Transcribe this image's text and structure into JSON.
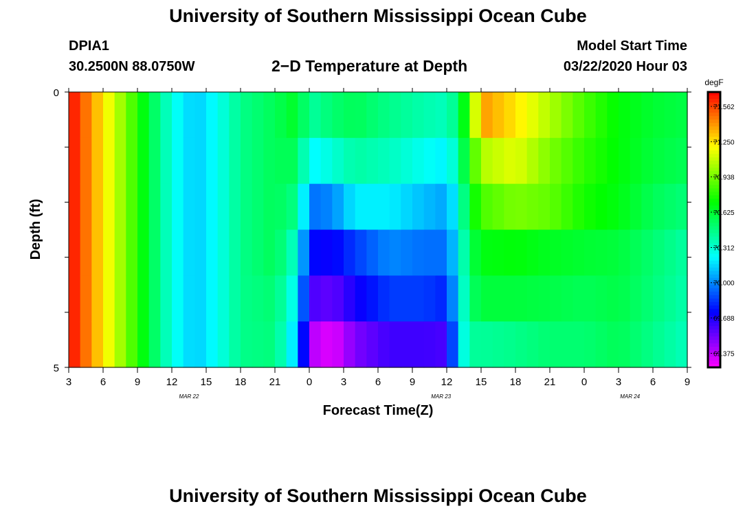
{
  "header": {
    "title": "University of Southern Mississippi Ocean Cube",
    "station": "DPIA1",
    "coordinates": "30.2500N 88.0750W",
    "subtitle": "2−D Temperature at Depth",
    "model_start_label": "Model Start Time",
    "model_start_value": "03/22/2020 Hour 03"
  },
  "footer": {
    "title": "University of Southern Mississippi Ocean Cube"
  },
  "chart_data": {
    "type": "heatmap",
    "title": "2−D Temperature at Depth",
    "xlabel": "Forecast Time(Z)",
    "ylabel": "Depth (ft)",
    "x_hours_range": [
      0,
      54
    ],
    "x_ticks": [
      "3",
      "6",
      "9",
      "12",
      "15",
      "18",
      "21",
      "0",
      "3",
      "6",
      "9",
      "12",
      "15",
      "18",
      "21",
      "0",
      "3",
      "6",
      "9"
    ],
    "date_labels": [
      {
        "text": "MAR 22",
        "hour": 10.5
      },
      {
        "text": "MAR 23",
        "hour": 32.5
      },
      {
        "text": "MAR 24",
        "hour": 49
      }
    ],
    "y_tick_labels": [
      "0",
      "5"
    ],
    "ylim": [
      0,
      5
    ],
    "depth_rows": [
      0,
      1,
      2,
      3,
      4,
      5
    ],
    "colorbar": {
      "unit": "degF",
      "min": 69.25,
      "max": 71.69,
      "labels": [
        "71.562",
        "71.250",
        "70.938",
        "70.625",
        "70.312",
        "70.000",
        "69.688",
        "69.375"
      ]
    },
    "profiles": [
      {
        "hour": 0,
        "values": [
          71.69,
          71.69,
          71.69,
          71.69,
          71.69,
          71.69
        ]
      },
      {
        "hour": 3,
        "values": [
          71.25,
          71.25,
          71.25,
          71.25,
          71.25,
          71.25
        ]
      },
      {
        "hour": 5,
        "values": [
          70.95,
          70.95,
          70.95,
          70.95,
          70.95,
          70.95
        ]
      },
      {
        "hour": 7,
        "values": [
          70.6,
          70.6,
          70.6,
          70.6,
          70.6,
          70.6
        ]
      },
      {
        "hour": 9,
        "values": [
          70.28,
          70.28,
          70.28,
          70.28,
          70.28,
          70.28
        ]
      },
      {
        "hour": 11,
        "values": [
          70.12,
          70.12,
          70.12,
          70.12,
          70.12,
          70.12
        ]
      },
      {
        "hour": 13,
        "values": [
          70.25,
          70.25,
          70.25,
          70.25,
          70.25,
          70.25
        ]
      },
      {
        "hour": 15,
        "values": [
          70.45,
          70.45,
          70.45,
          70.45,
          70.45,
          70.45
        ]
      },
      {
        "hour": 18,
        "values": [
          70.55,
          70.55,
          70.55,
          70.55,
          70.5,
          70.48
        ]
      },
      {
        "hour": 20,
        "values": [
          70.65,
          70.55,
          70.45,
          70.3,
          70.2,
          70.1
        ]
      },
      {
        "hour": 21,
        "values": [
          70.4,
          70.2,
          69.95,
          69.75,
          69.6,
          69.4
        ]
      },
      {
        "hour": 23,
        "values": [
          70.5,
          70.3,
          70.0,
          69.72,
          69.55,
          69.3
        ]
      },
      {
        "hour": 25,
        "values": [
          70.55,
          70.4,
          70.2,
          69.85,
          69.7,
          69.5
        ]
      },
      {
        "hour": 28,
        "values": [
          70.45,
          70.35,
          70.2,
          70.0,
          69.85,
          69.62
        ]
      },
      {
        "hour": 31,
        "values": [
          70.38,
          70.25,
          70.1,
          69.95,
          69.85,
          69.62
        ]
      },
      {
        "hour": 33,
        "values": [
          70.35,
          70.2,
          70.05,
          69.95,
          69.8,
          69.6
        ]
      },
      {
        "hour": 34,
        "values": [
          70.5,
          70.4,
          70.28,
          70.22,
          70.18,
          70.15
        ]
      },
      {
        "hour": 35,
        "values": [
          70.85,
          70.75,
          70.65,
          70.55,
          70.5,
          70.42
        ]
      },
      {
        "hour": 36,
        "values": [
          71.4,
          71.05,
          70.85,
          70.68,
          70.6,
          70.42
        ]
      },
      {
        "hour": 39,
        "values": [
          71.25,
          71.15,
          70.95,
          70.7,
          70.6,
          70.45
        ]
      },
      {
        "hour": 42,
        "values": [
          71.05,
          70.95,
          70.9,
          70.65,
          70.58,
          70.5
        ]
      },
      {
        "hour": 45,
        "values": [
          70.85,
          70.8,
          70.75,
          70.62,
          70.55,
          70.5
        ]
      },
      {
        "hour": 48,
        "values": [
          70.7,
          70.7,
          70.68,
          70.6,
          70.58,
          70.55
        ]
      },
      {
        "hour": 51,
        "values": [
          70.62,
          70.6,
          70.55,
          70.5,
          70.48,
          70.45
        ]
      },
      {
        "hour": 54,
        "values": [
          70.58,
          70.55,
          70.48,
          70.4,
          70.38,
          70.35
        ]
      }
    ]
  }
}
